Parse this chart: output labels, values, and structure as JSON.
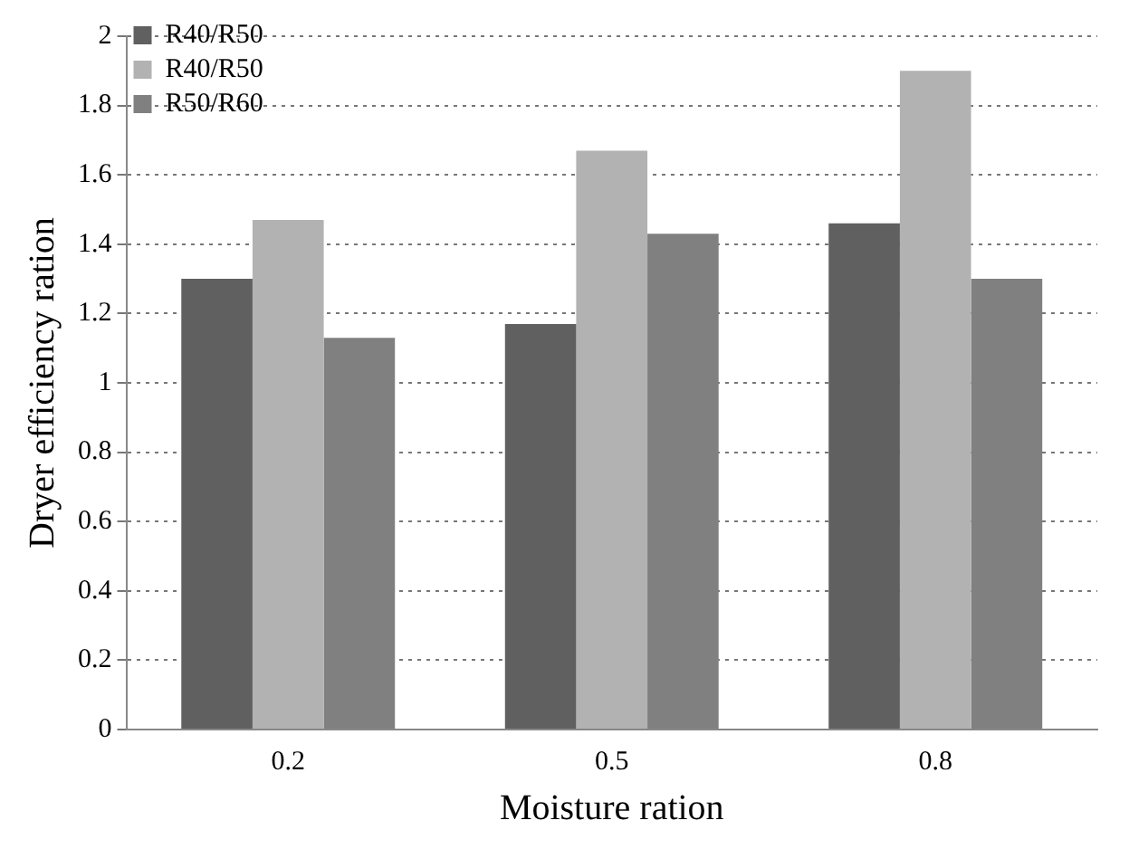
{
  "chart_data": {
    "type": "bar",
    "xlabel": "Moisture ration",
    "ylabel": "Dryer efficiency ration",
    "categories": [
      "0.2",
      "0.5",
      "0.8"
    ],
    "series": [
      {
        "name": "R40/R50",
        "color": "#606060",
        "values": [
          1.3,
          1.17,
          1.46
        ]
      },
      {
        "name": "R40/R50",
        "color": "#b2b2b2",
        "values": [
          1.47,
          1.67,
          1.9
        ]
      },
      {
        "name": "R50/R60",
        "color": "#808080",
        "values": [
          1.13,
          1.43,
          1.3
        ]
      }
    ],
    "ylim": [
      0,
      2
    ],
    "yticks": [
      0,
      0.2,
      0.4,
      0.6,
      0.8,
      1,
      1.2,
      1.4,
      1.6,
      1.8,
      2
    ],
    "grid": "y",
    "legend": "top left"
  }
}
